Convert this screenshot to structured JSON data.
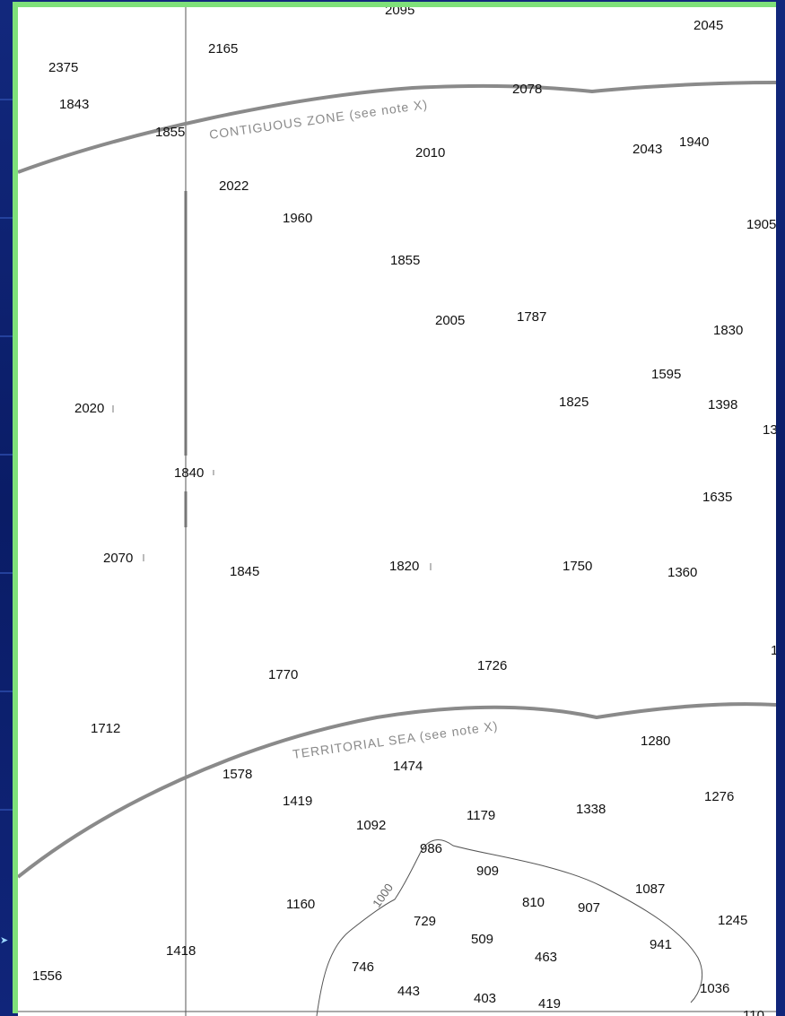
{
  "colors": {
    "frame": "#7fe07a",
    "background": "#0b1f6e",
    "boundary_line": "#8a8a8a",
    "contour": "#555555"
  },
  "map": {
    "labels": {
      "contiguous_zone": "CONTIGUOUS ZONE (see note X)",
      "territorial_sea": "TERRITORIAL SEA (see note X)",
      "contour_1000": "1000"
    },
    "soundings": [
      {
        "id": "s01",
        "text": "2095"
      },
      {
        "id": "s02",
        "text": "2045"
      },
      {
        "id": "s03",
        "text": "2375"
      },
      {
        "id": "s04",
        "text": "2165"
      },
      {
        "id": "s05",
        "text": "1843"
      },
      {
        "id": "s06",
        "text": "2078"
      },
      {
        "id": "s07",
        "text": "1855"
      },
      {
        "id": "s08",
        "text": "2010"
      },
      {
        "id": "s09",
        "text": "2043"
      },
      {
        "id": "s10",
        "text": "1940"
      },
      {
        "id": "s11",
        "text": "2022"
      },
      {
        "id": "s12",
        "text": "1960"
      },
      {
        "id": "s13",
        "text": "1905"
      },
      {
        "id": "s14",
        "text": "1855"
      },
      {
        "id": "s15",
        "text": "2005"
      },
      {
        "id": "s16",
        "text": "1787"
      },
      {
        "id": "s17",
        "text": "1830"
      },
      {
        "id": "s18",
        "text": "1595"
      },
      {
        "id": "s19",
        "text": "2020"
      },
      {
        "id": "s20",
        "text": "1825"
      },
      {
        "id": "s21",
        "text": "1398"
      },
      {
        "id": "s22",
        "text": "13"
      },
      {
        "id": "s23",
        "text": "1840"
      },
      {
        "id": "s24",
        "text": "1635"
      },
      {
        "id": "s25",
        "text": "2070"
      },
      {
        "id": "s26",
        "text": "1845"
      },
      {
        "id": "s27",
        "text": "1820"
      },
      {
        "id": "s28",
        "text": "1750"
      },
      {
        "id": "s29",
        "text": "1360"
      },
      {
        "id": "s30",
        "text": "1"
      },
      {
        "id": "s31",
        "text": "1770"
      },
      {
        "id": "s32",
        "text": "1726"
      },
      {
        "id": "s33",
        "text": "1712"
      },
      {
        "id": "s34",
        "text": "1280"
      },
      {
        "id": "s35",
        "text": "1578"
      },
      {
        "id": "s36",
        "text": "1474"
      },
      {
        "id": "s37",
        "text": "1419"
      },
      {
        "id": "s38",
        "text": "1092"
      },
      {
        "id": "s39",
        "text": "1179"
      },
      {
        "id": "s40",
        "text": "1338"
      },
      {
        "id": "s41",
        "text": "1276"
      },
      {
        "id": "s42",
        "text": "986"
      },
      {
        "id": "s43",
        "text": "909"
      },
      {
        "id": "s44",
        "text": "1087"
      },
      {
        "id": "s45",
        "text": "1160"
      },
      {
        "id": "s46",
        "text": "810"
      },
      {
        "id": "s47",
        "text": "907"
      },
      {
        "id": "s48",
        "text": "729"
      },
      {
        "id": "s49",
        "text": "1245"
      },
      {
        "id": "s50",
        "text": "509"
      },
      {
        "id": "s51",
        "text": "941"
      },
      {
        "id": "s52",
        "text": "1418"
      },
      {
        "id": "s53",
        "text": "463"
      },
      {
        "id": "s54",
        "text": "746"
      },
      {
        "id": "s55",
        "text": "1556"
      },
      {
        "id": "s56",
        "text": "1036"
      },
      {
        "id": "s57",
        "text": "443"
      },
      {
        "id": "s58",
        "text": "403"
      },
      {
        "id": "s59",
        "text": "419"
      },
      {
        "id": "s60",
        "text": "110"
      }
    ]
  }
}
